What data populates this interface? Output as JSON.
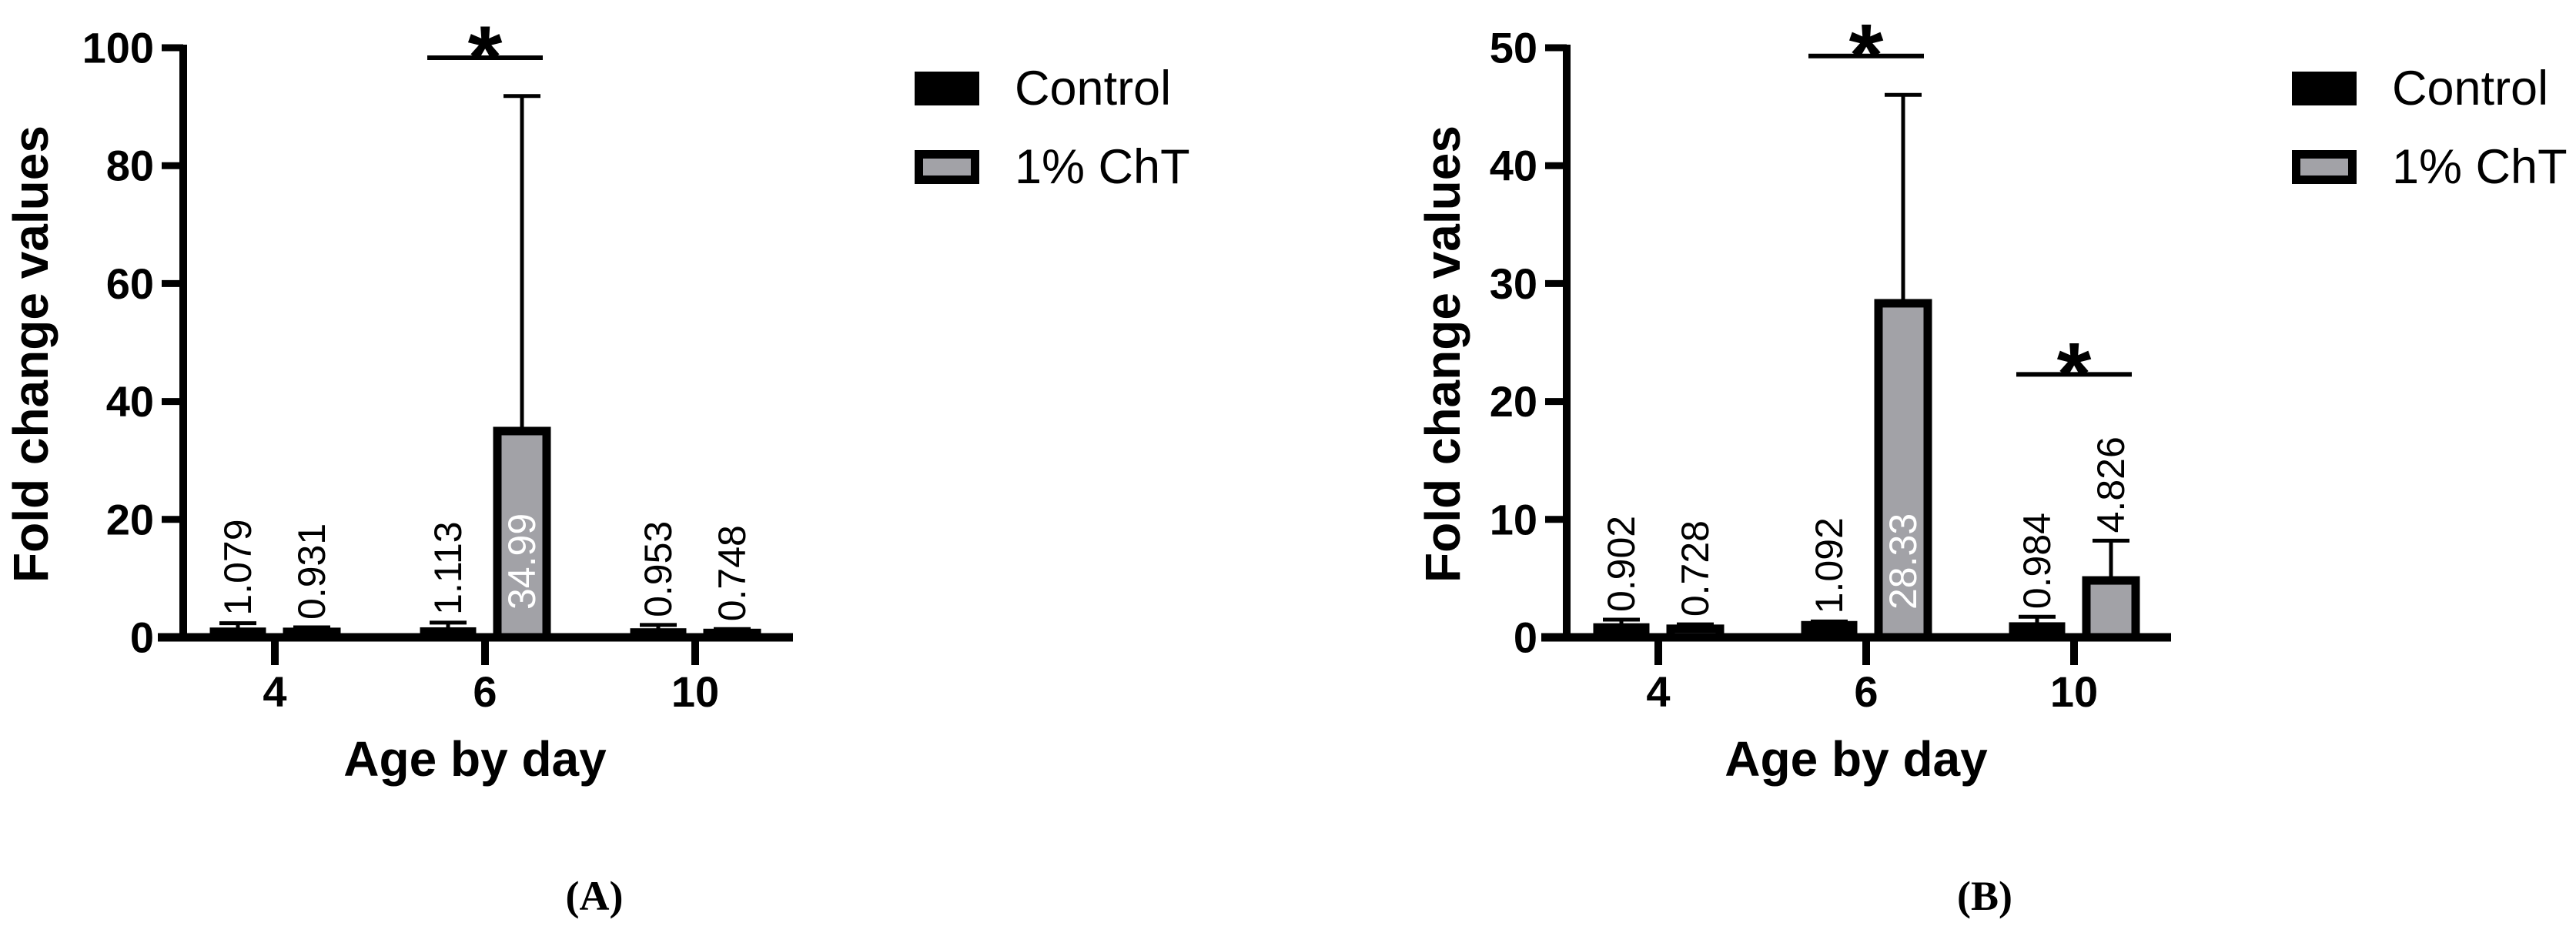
{
  "figure": {
    "background": "#ffffff",
    "axis_color": "#000000"
  },
  "legend": {
    "items": [
      {
        "label": "Control",
        "fill": "#000000",
        "border": "#000000"
      },
      {
        "label": "1% ChT",
        "fill": "#a2a2a7",
        "border": "#000000"
      }
    ]
  },
  "chart_data": [
    {
      "panel_label": "(A)",
      "type": "bar",
      "title": "",
      "xlabel": "Age by day",
      "ylabel": "Fold change values",
      "ylim": [
        0,
        100
      ],
      "yticks": [
        0,
        20,
        40,
        60,
        80,
        100
      ],
      "categories": [
        "4",
        "6",
        "10"
      ],
      "grid": false,
      "legend_position": "top-right",
      "error_bars": "sd-upper",
      "series": [
        {
          "name": "Control",
          "fill": "#000000",
          "values": [
            1.079,
            1.113,
            0.953
          ],
          "value_labels": [
            "1.079",
            "1.113",
            "0.953"
          ],
          "error_bar_tops": [
            2.4,
            2.5,
            2.1
          ],
          "label_inside": [
            false,
            false,
            false
          ]
        },
        {
          "name": "1% ChT",
          "fill": "#a2a2a7",
          "values": [
            0.931,
            34.99,
            0.748
          ],
          "value_labels": [
            "0.931",
            "34.99",
            "0.748"
          ],
          "error_bar_tops": [
            1.7,
            91.8,
            1.4
          ],
          "label_inside": [
            false,
            true,
            false
          ]
        }
      ],
      "significance_brackets": [
        {
          "category_index": 1,
          "label": "*",
          "line_value": 98.3
        }
      ]
    },
    {
      "panel_label": "(B)",
      "type": "bar",
      "title": "",
      "xlabel": "Age by day",
      "ylabel": "Fold change values",
      "ylim": [
        0,
        50
      ],
      "yticks": [
        0,
        10,
        20,
        30,
        40,
        50
      ],
      "categories": [
        "4",
        "6",
        "10"
      ],
      "grid": false,
      "legend_position": "top-right",
      "error_bars": "sd-upper",
      "series": [
        {
          "name": "Control",
          "fill": "#000000",
          "values": [
            0.902,
            1.092,
            0.984
          ],
          "value_labels": [
            "0.902",
            "1.092",
            "0.984"
          ],
          "error_bar_tops": [
            1.5,
            1.35,
            1.75
          ],
          "label_inside": [
            false,
            false,
            false
          ]
        },
        {
          "name": "1% ChT",
          "fill": "#a2a2a7",
          "values": [
            0.728,
            28.33,
            4.826
          ],
          "value_labels": [
            "0.728",
            "28.33",
            "4.826"
          ],
          "error_bar_tops": [
            1.1,
            46.0,
            8.2
          ],
          "label_inside": [
            false,
            true,
            false
          ]
        }
      ],
      "significance_brackets": [
        {
          "category_index": 1,
          "label": "*",
          "line_value": 49.3
        },
        {
          "category_index": 2,
          "label": "*",
          "line_value": 22.3
        }
      ]
    }
  ]
}
